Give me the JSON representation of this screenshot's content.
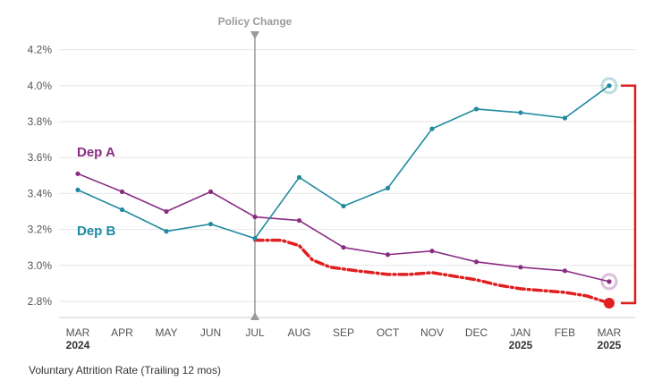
{
  "chart_data": {
    "type": "line",
    "ylabel": "Voluntary Attrition Rate (Trailing 12 mos)",
    "ylim": [
      2.75,
      4.3
    ],
    "yticks": [
      "2.8%",
      "3.0%",
      "3.2%",
      "3.4%",
      "3.6%",
      "3.8%",
      "4.0%",
      "4.2%"
    ],
    "ytick_values": [
      2.8,
      3.0,
      3.2,
      3.4,
      3.6,
      3.8,
      4.0,
      4.2
    ],
    "categories": [
      "MAR",
      "APR",
      "MAY",
      "JUN",
      "JUL",
      "AUG",
      "SEP",
      "OCT",
      "NOV",
      "DEC",
      "JAN",
      "FEB",
      "MAR"
    ],
    "year_labels": [
      {
        "index": 0,
        "label": "2024"
      },
      {
        "index": 10,
        "label": "2025"
      },
      {
        "index": 12,
        "label": "2025"
      }
    ],
    "series": [
      {
        "name": "Dep A",
        "color": "#8a2c84",
        "values": [
          3.51,
          3.41,
          3.3,
          3.41,
          3.27,
          3.25,
          3.1,
          3.06,
          3.08,
          3.02,
          2.99,
          2.97,
          2.91
        ]
      },
      {
        "name": "Dep B",
        "color": "#1f8aa0",
        "values": [
          3.42,
          3.31,
          3.19,
          3.23,
          3.15,
          3.49,
          3.33,
          3.43,
          3.76,
          3.87,
          3.85,
          3.82,
          4.0
        ]
      }
    ],
    "annotation": {
      "label": "Policy Change",
      "x_index": 4,
      "color": "#9a9a9a"
    },
    "projection": {
      "color": "#e02020",
      "x_start": 4.0,
      "points": [
        [
          4.0,
          3.14
        ],
        [
          4.6,
          3.14
        ],
        [
          5.0,
          3.11
        ],
        [
          5.3,
          3.03
        ],
        [
          5.7,
          2.99
        ],
        [
          6.3,
          2.97
        ],
        [
          7.0,
          2.95
        ],
        [
          7.5,
          2.95
        ],
        [
          8.0,
          2.96
        ],
        [
          8.5,
          2.94
        ],
        [
          9.0,
          2.92
        ],
        [
          9.5,
          2.89
        ],
        [
          10.0,
          2.87
        ],
        [
          10.5,
          2.86
        ],
        [
          11.0,
          2.85
        ],
        [
          11.5,
          2.83
        ],
        [
          12.0,
          2.79
        ]
      ]
    },
    "grid": "horizontal",
    "legend": "inline"
  },
  "colors": {
    "grid": "#e6e6e6",
    "axis": "#cccccc",
    "bracket": "#e02020"
  }
}
